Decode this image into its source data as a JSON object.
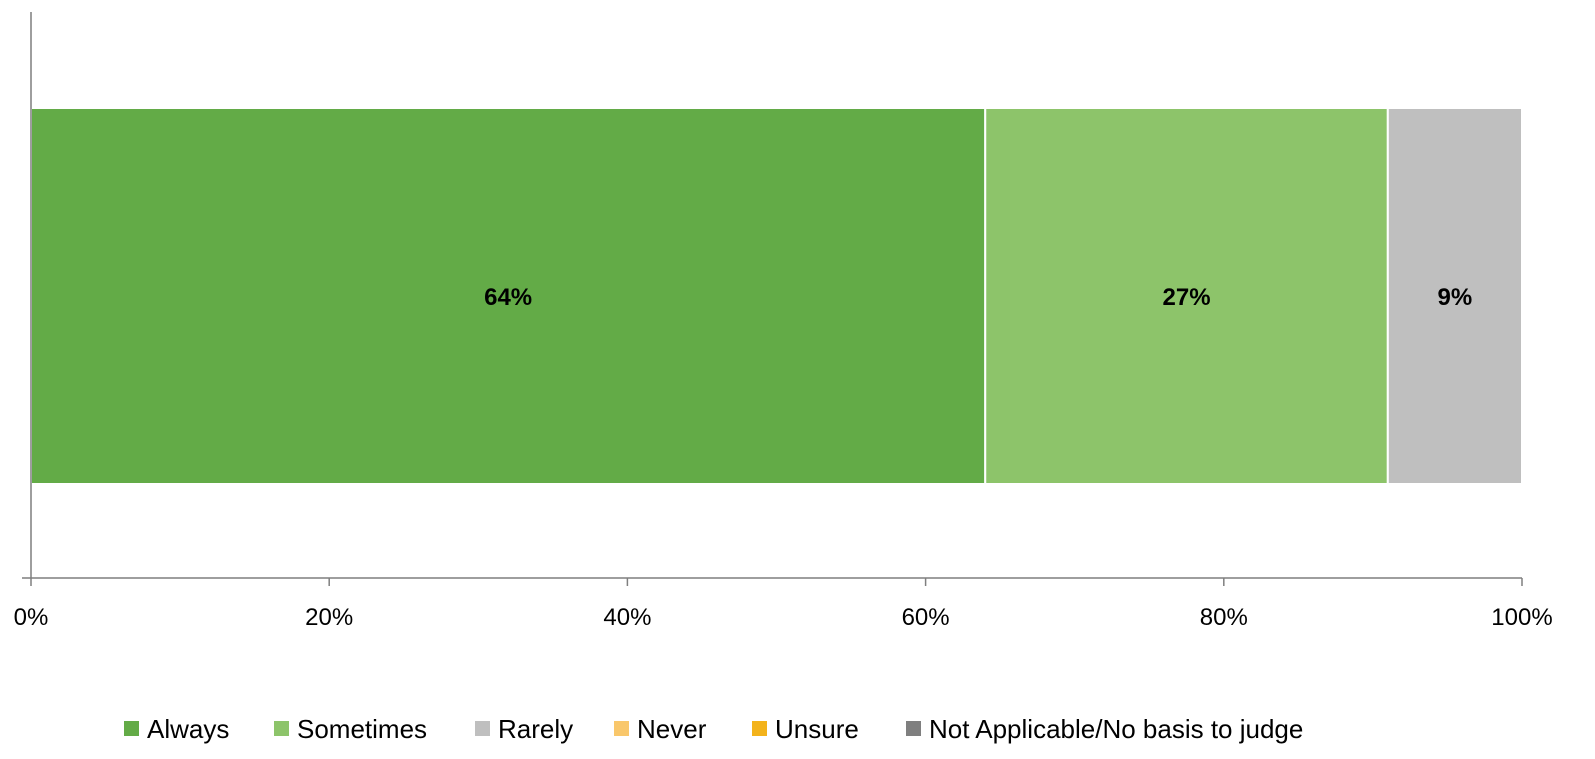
{
  "chart_data": {
    "type": "bar",
    "orientation": "horizontal",
    "stacked": true,
    "categories": [
      ""
    ],
    "series": [
      {
        "name": "Always",
        "values": [
          64
        ],
        "label": "64%",
        "color": "#63ab47"
      },
      {
        "name": "Sometimes",
        "values": [
          27
        ],
        "label": "27%",
        "color": "#8dc46a"
      },
      {
        "name": "Rarely",
        "values": [
          9
        ],
        "label": "9%",
        "color": "#bfbfbf"
      },
      {
        "name": "Never",
        "values": [
          0
        ],
        "label": "",
        "color": "#f9c76b"
      },
      {
        "name": "Unsure",
        "values": [
          0
        ],
        "label": "",
        "color": "#f3b31b"
      },
      {
        "name": "Not Applicable/No basis to judge",
        "values": [
          0
        ],
        "label": "",
        "color": "#7f7f7f"
      }
    ],
    "xlim": [
      0,
      100
    ],
    "xticks": [
      0,
      20,
      40,
      60,
      80,
      100
    ],
    "xtick_labels": [
      "0%",
      "20%",
      "40%",
      "60%",
      "80%",
      "100%"
    ],
    "title": "",
    "xlabel": "",
    "ylabel": "",
    "grid": false,
    "legend_position": "bottom"
  }
}
